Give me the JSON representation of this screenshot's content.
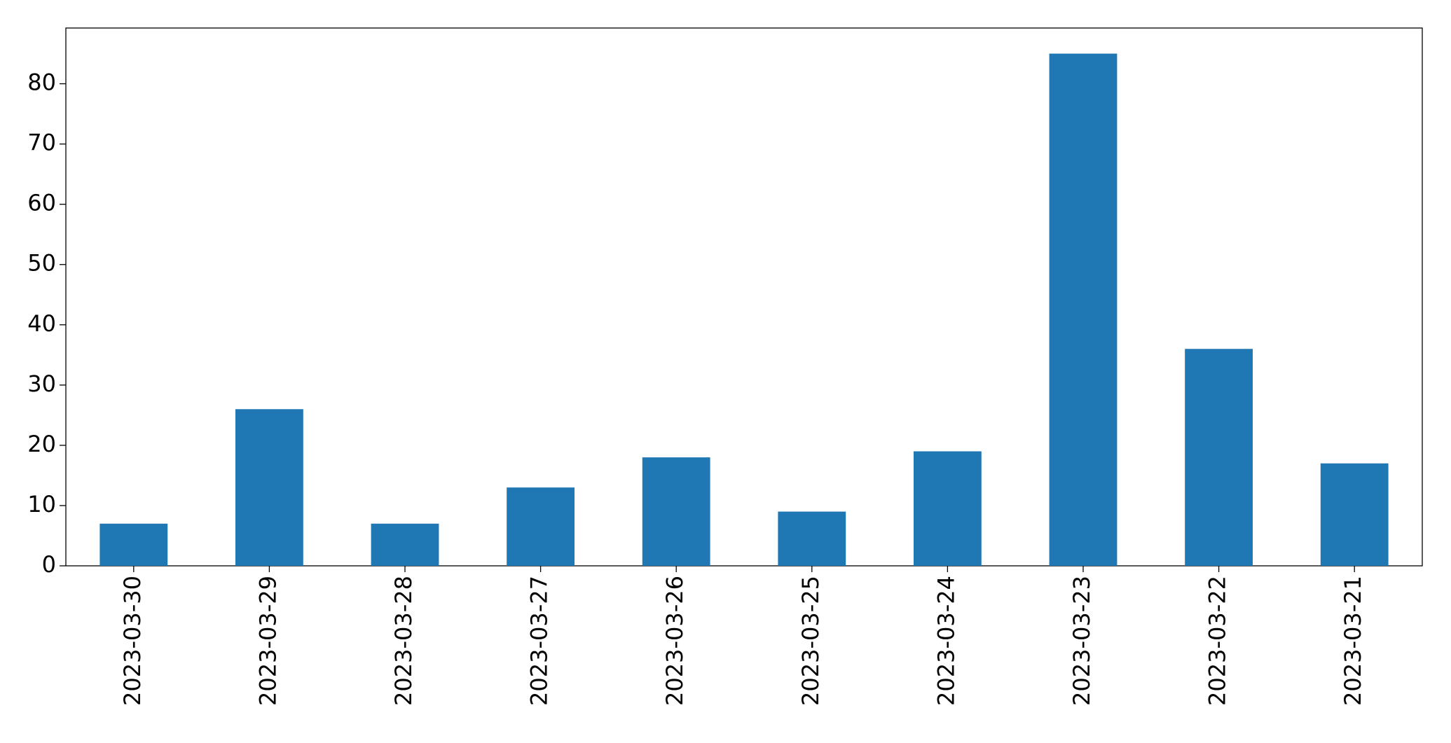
{
  "chart_data": {
    "type": "bar",
    "categories": [
      "2023-03-30",
      "2023-03-29",
      "2023-03-28",
      "2023-03-27",
      "2023-03-26",
      "2023-03-25",
      "2023-03-24",
      "2023-03-23",
      "2023-03-22",
      "2023-03-21"
    ],
    "values": [
      7,
      26,
      7,
      13,
      18,
      9,
      19,
      85,
      36,
      17
    ],
    "color": "#1f77b4",
    "ylim": [
      0,
      89.25
    ],
    "yticks": [
      0,
      10,
      20,
      30,
      40,
      50,
      60,
      70,
      80
    ],
    "grid": false
  }
}
